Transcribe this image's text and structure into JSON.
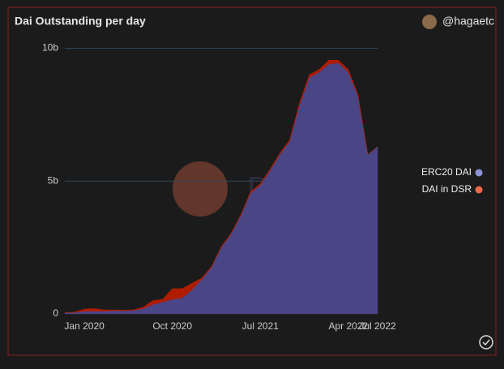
{
  "chart_data": {
    "type": "stacked-area",
    "title": "Dai Outstanding per day",
    "author": "@hagaetc",
    "watermark": "Dune",
    "x": [
      "2019-11",
      "2019-12",
      "2020-01",
      "2020-02",
      "2020-03",
      "2020-04",
      "2020-05",
      "2020-06",
      "2020-07",
      "2020-08",
      "2020-09",
      "2020-10",
      "2020-11",
      "2020-12",
      "2021-01",
      "2021-02",
      "2021-03",
      "2021-04",
      "2021-05",
      "2021-06",
      "2021-07",
      "2021-08",
      "2021-09",
      "2021-10",
      "2021-11",
      "2021-12",
      "2022-01",
      "2022-02",
      "2022-03",
      "2022-04",
      "2022-05",
      "2022-06",
      "2022-07"
    ],
    "xlim": [
      "2019-11",
      "2022-07"
    ],
    "xticks": [
      {
        "value": "2020-01",
        "label": "Jan 2020"
      },
      {
        "value": "2020-10",
        "label": "Oct 2020"
      },
      {
        "value": "2021-07",
        "label": "Jul 2021"
      },
      {
        "value": "2022-04",
        "label": "Apr 2022"
      },
      {
        "value": "2022-07",
        "label": "Jul 2022"
      }
    ],
    "ylim": [
      0,
      10.2
    ],
    "yticks": [
      0,
      {
        "value": 5,
        "label": "5b"
      },
      {
        "value": 10,
        "label": "10b"
      }
    ],
    "grid": true,
    "legend": "right",
    "series": [
      {
        "name": "ERC20 DAI",
        "color": "#4a4585",
        "legend_color": "#8d93d3",
        "values": [
          0.05,
          0.05,
          0.1,
          0.1,
          0.1,
          0.12,
          0.12,
          0.13,
          0.2,
          0.35,
          0.45,
          0.55,
          0.6,
          0.9,
          1.3,
          1.75,
          2.5,
          3.0,
          3.7,
          4.55,
          4.85,
          5.4,
          6.0,
          6.5,
          7.85,
          8.9,
          9.1,
          9.4,
          9.45,
          9.1,
          8.2,
          6.0,
          6.3
        ]
      },
      {
        "name": "DAI in DSR",
        "color": "#b01c00",
        "legend_color": "#e8694a",
        "values": [
          0,
          0.02,
          0.08,
          0.1,
          0.05,
          0.03,
          0.02,
          0.02,
          0.05,
          0.15,
          0.1,
          0.4,
          0.35,
          0.25,
          0.05,
          0.03,
          0.03,
          0.03,
          0.03,
          0.05,
          0.05,
          0.05,
          0.05,
          0.05,
          0.08,
          0.1,
          0.1,
          0.15,
          0.1,
          0.1,
          0.05,
          0,
          0
        ]
      }
    ]
  }
}
